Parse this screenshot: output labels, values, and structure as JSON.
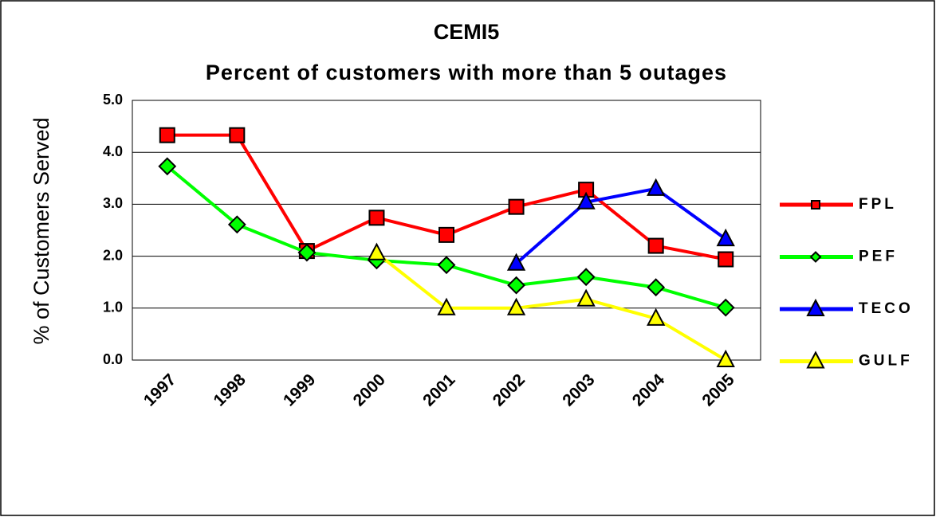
{
  "chart_data": {
    "type": "line",
    "title": "CEMI5",
    "subtitle": "Percent of customers with more than 5 outages",
    "y_label": "% of Customers Served",
    "categories": [
      "1997",
      "1998",
      "1999",
      "2000",
      "2001",
      "2002",
      "2003",
      "2004",
      "2005"
    ],
    "series": [
      {
        "name": "FPL",
        "color": "#ff0000",
        "marker": "square",
        "values": [
          4.33,
          4.33,
          2.1,
          2.74,
          2.41,
          2.95,
          3.28,
          2.2,
          1.94
        ]
      },
      {
        "name": "PEF",
        "color": "#00ff00",
        "marker": "diamond",
        "values": [
          3.73,
          2.61,
          2.07,
          1.92,
          1.83,
          1.44,
          1.6,
          1.4,
          1.01
        ]
      },
      {
        "name": "TECO",
        "color": "#0000ff",
        "marker": "triangle",
        "values": [
          null,
          null,
          null,
          null,
          null,
          1.86,
          3.04,
          3.3,
          2.33
        ]
      },
      {
        "name": "GULF",
        "color": "#ffff00",
        "marker": "triangle",
        "values": [
          null,
          null,
          null,
          2.06,
          1.0,
          1.0,
          1.17,
          0.8,
          0.0
        ]
      }
    ],
    "ylim": [
      0,
      5
    ],
    "yticks": [
      {
        "value": 0,
        "label": "0.0"
      },
      {
        "value": 1,
        "label": "1.0"
      },
      {
        "value": 2,
        "label": "2.0"
      },
      {
        "value": 3,
        "label": "3.0"
      },
      {
        "value": 4,
        "label": "4.0"
      },
      {
        "value": 5,
        "label": "5.0"
      }
    ],
    "grid": true,
    "legend": "right"
  }
}
